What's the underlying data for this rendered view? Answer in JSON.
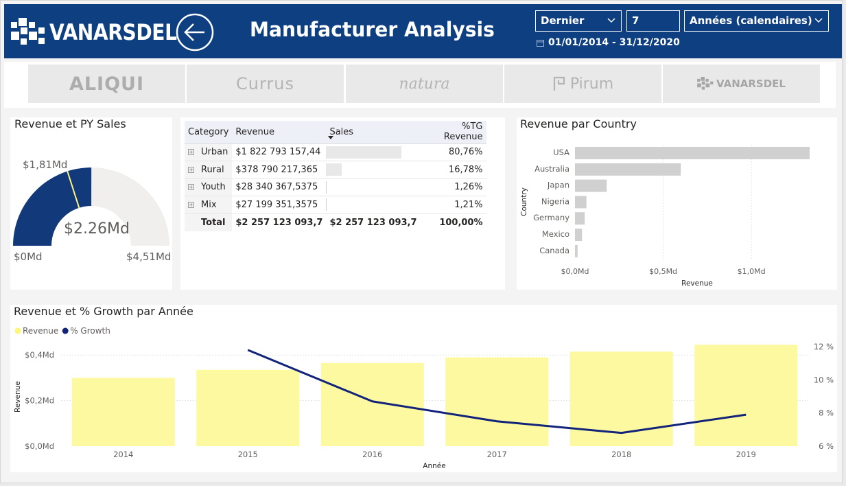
{
  "header": {
    "brand": "VANARSDEL",
    "title": "Manufacturer Analysis",
    "filters": {
      "relative": "Dernier",
      "count": "7",
      "period": "Années (calendaires)"
    },
    "date_range": "01/01/2014 - 31/12/2020"
  },
  "manufacturers": [
    "ALIQUI",
    "Currus",
    "natura",
    "Pirum",
    "VANARSDEL"
  ],
  "gauge": {
    "title": "Revenue et PY Sales",
    "value_label": "$2.26Md",
    "target_label": "$1,81Md",
    "min_label": "$0Md",
    "max_label": "$4,51Md",
    "value": 2.257,
    "target": 1.81,
    "max": 4.51,
    "colors": {
      "fill": "#12397a",
      "track": "#f0efee",
      "target": "#fff37a"
    }
  },
  "matrix": {
    "headers": [
      "Category",
      "Revenue",
      "Sales",
      "%TG Revenue"
    ],
    "rows": [
      {
        "category": "Urban",
        "revenue": "$1 822 793 157,44",
        "sales_pct": 80.76,
        "tg": "80,76%"
      },
      {
        "category": "Rural",
        "revenue": "$378 790 217,365",
        "sales_pct": 16.78,
        "tg": "16,78%"
      },
      {
        "category": "Youth",
        "revenue": "$28 340 367,5375",
        "sales_pct": 1.26,
        "tg": "1,26%"
      },
      {
        "category": "Mix",
        "revenue": "$27 199 351,3575",
        "sales_pct": 1.21,
        "tg": "1,21%"
      }
    ],
    "total": {
      "label": "Total",
      "revenue": "$2 257 123 093,7",
      "sales": "$2 257 123 093,7",
      "tg": "100,00%"
    }
  },
  "chart_data": [
    {
      "type": "bar",
      "orientation": "horizontal",
      "title": "Revenue par Country",
      "categories": [
        "USA",
        "Australia",
        "Japan",
        "Nigeria",
        "Germany",
        "Mexico",
        "Canada"
      ],
      "values": [
        1.33,
        0.6,
        0.18,
        0.065,
        0.055,
        0.04,
        0.015
      ],
      "xlabel": "Revenue",
      "ylabel": "Country",
      "xticks": [
        "$0,0Md",
        "$0,5Md",
        "$1,0Md"
      ],
      "xtick_values": [
        0,
        0.5,
        1.0
      ],
      "xlim": [
        0,
        1.4
      ],
      "color": "#d0d0d0"
    },
    {
      "type": "bar",
      "title": "Revenue et % Growth par Année",
      "categories": [
        "2014",
        "2015",
        "2016",
        "2017",
        "2018",
        "2019"
      ],
      "series": [
        {
          "name": "Revenue",
          "type": "bar",
          "values": [
            0.3,
            0.335,
            0.365,
            0.39,
            0.415,
            0.445
          ],
          "color": "#fcf9a0"
        },
        {
          "name": "% Growth",
          "type": "line",
          "axis": "right",
          "values": [
            null,
            11.8,
            8.7,
            7.5,
            6.8,
            7.9
          ],
          "color": "#12237a"
        }
      ],
      "xlabel": "Année",
      "ylabel": "Revenue",
      "yticks_left": [
        "$0,0Md",
        "$0,2Md",
        "$0,4Md"
      ],
      "ytick_left_values": [
        0,
        0.2,
        0.4
      ],
      "ylim_left": [
        0,
        0.5
      ],
      "yticks_right": [
        "6 %",
        "8 %",
        "10 %",
        "12 %"
      ],
      "ytick_right_values": [
        6,
        8,
        10,
        12
      ],
      "ylim_right": [
        6,
        12
      ],
      "legend": "top-left"
    }
  ]
}
